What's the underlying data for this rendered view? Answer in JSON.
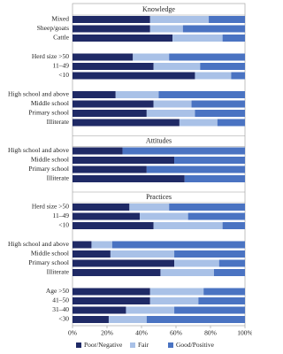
{
  "chart_data": {
    "type": "stacked-bar-horizontal",
    "xlim": [
      0,
      100
    ],
    "xticks": [
      {
        "value": 0,
        "label": "0%"
      },
      {
        "value": 20,
        "label": "20%"
      },
      {
        "value": 40,
        "label": "40%"
      },
      {
        "value": 60,
        "label": "60%"
      },
      {
        "value": 80,
        "label": "80%"
      },
      {
        "value": 100,
        "label": "100%"
      }
    ],
    "panels": [
      {
        "title": "Knowledge",
        "groups": [
          {
            "categories": [
              "Mixed",
              "Sheep/goats",
              "Cattle"
            ]
          },
          {
            "categories": [
              "Herd size >50",
              "11–49",
              "<10"
            ]
          },
          {
            "categories": [
              "High school and above",
              "Middle school",
              "Primary school",
              "Illiterate"
            ]
          }
        ]
      },
      {
        "title": "Attitudes",
        "groups": [
          {
            "categories": [
              "High school and above",
              "Middle school",
              "Primary school",
              "Illiterate"
            ]
          }
        ]
      },
      {
        "title": "Practices",
        "groups": [
          {
            "categories": [
              "Herd size >50",
              "11–49",
              "<10"
            ]
          },
          {
            "categories": [
              "High school and above",
              "Middle school",
              "Primary school",
              "Illiterate"
            ]
          },
          {
            "categories": [
              "Age >50",
              "41–50",
              "31–40",
              "<30"
            ]
          }
        ]
      }
    ],
    "series": [
      {
        "name": "Poor/Negative",
        "color": "#1f2a66",
        "values": [
          45,
          45,
          58,
          35,
          47,
          71,
          25,
          47,
          43,
          62,
          29,
          59,
          43,
          65,
          33,
          39,
          47,
          11,
          22,
          59,
          51,
          45,
          45,
          31,
          21
        ]
      },
      {
        "name": "Fair",
        "color": "#a9c1e7",
        "values": [
          34,
          19,
          29,
          21,
          27,
          21,
          25,
          22,
          28,
          22,
          0,
          0,
          0,
          0,
          23,
          28,
          40,
          12,
          37,
          26,
          31,
          31,
          28,
          28,
          22
        ]
      },
      {
        "name": "Good/Positive",
        "color": "#4a73c2",
        "values": [
          21,
          36,
          13,
          44,
          26,
          8,
          50,
          31,
          29,
          16,
          71,
          41,
          57,
          35,
          44,
          33,
          13,
          77,
          41,
          15,
          18,
          24,
          27,
          41,
          57
        ]
      }
    ]
  }
}
